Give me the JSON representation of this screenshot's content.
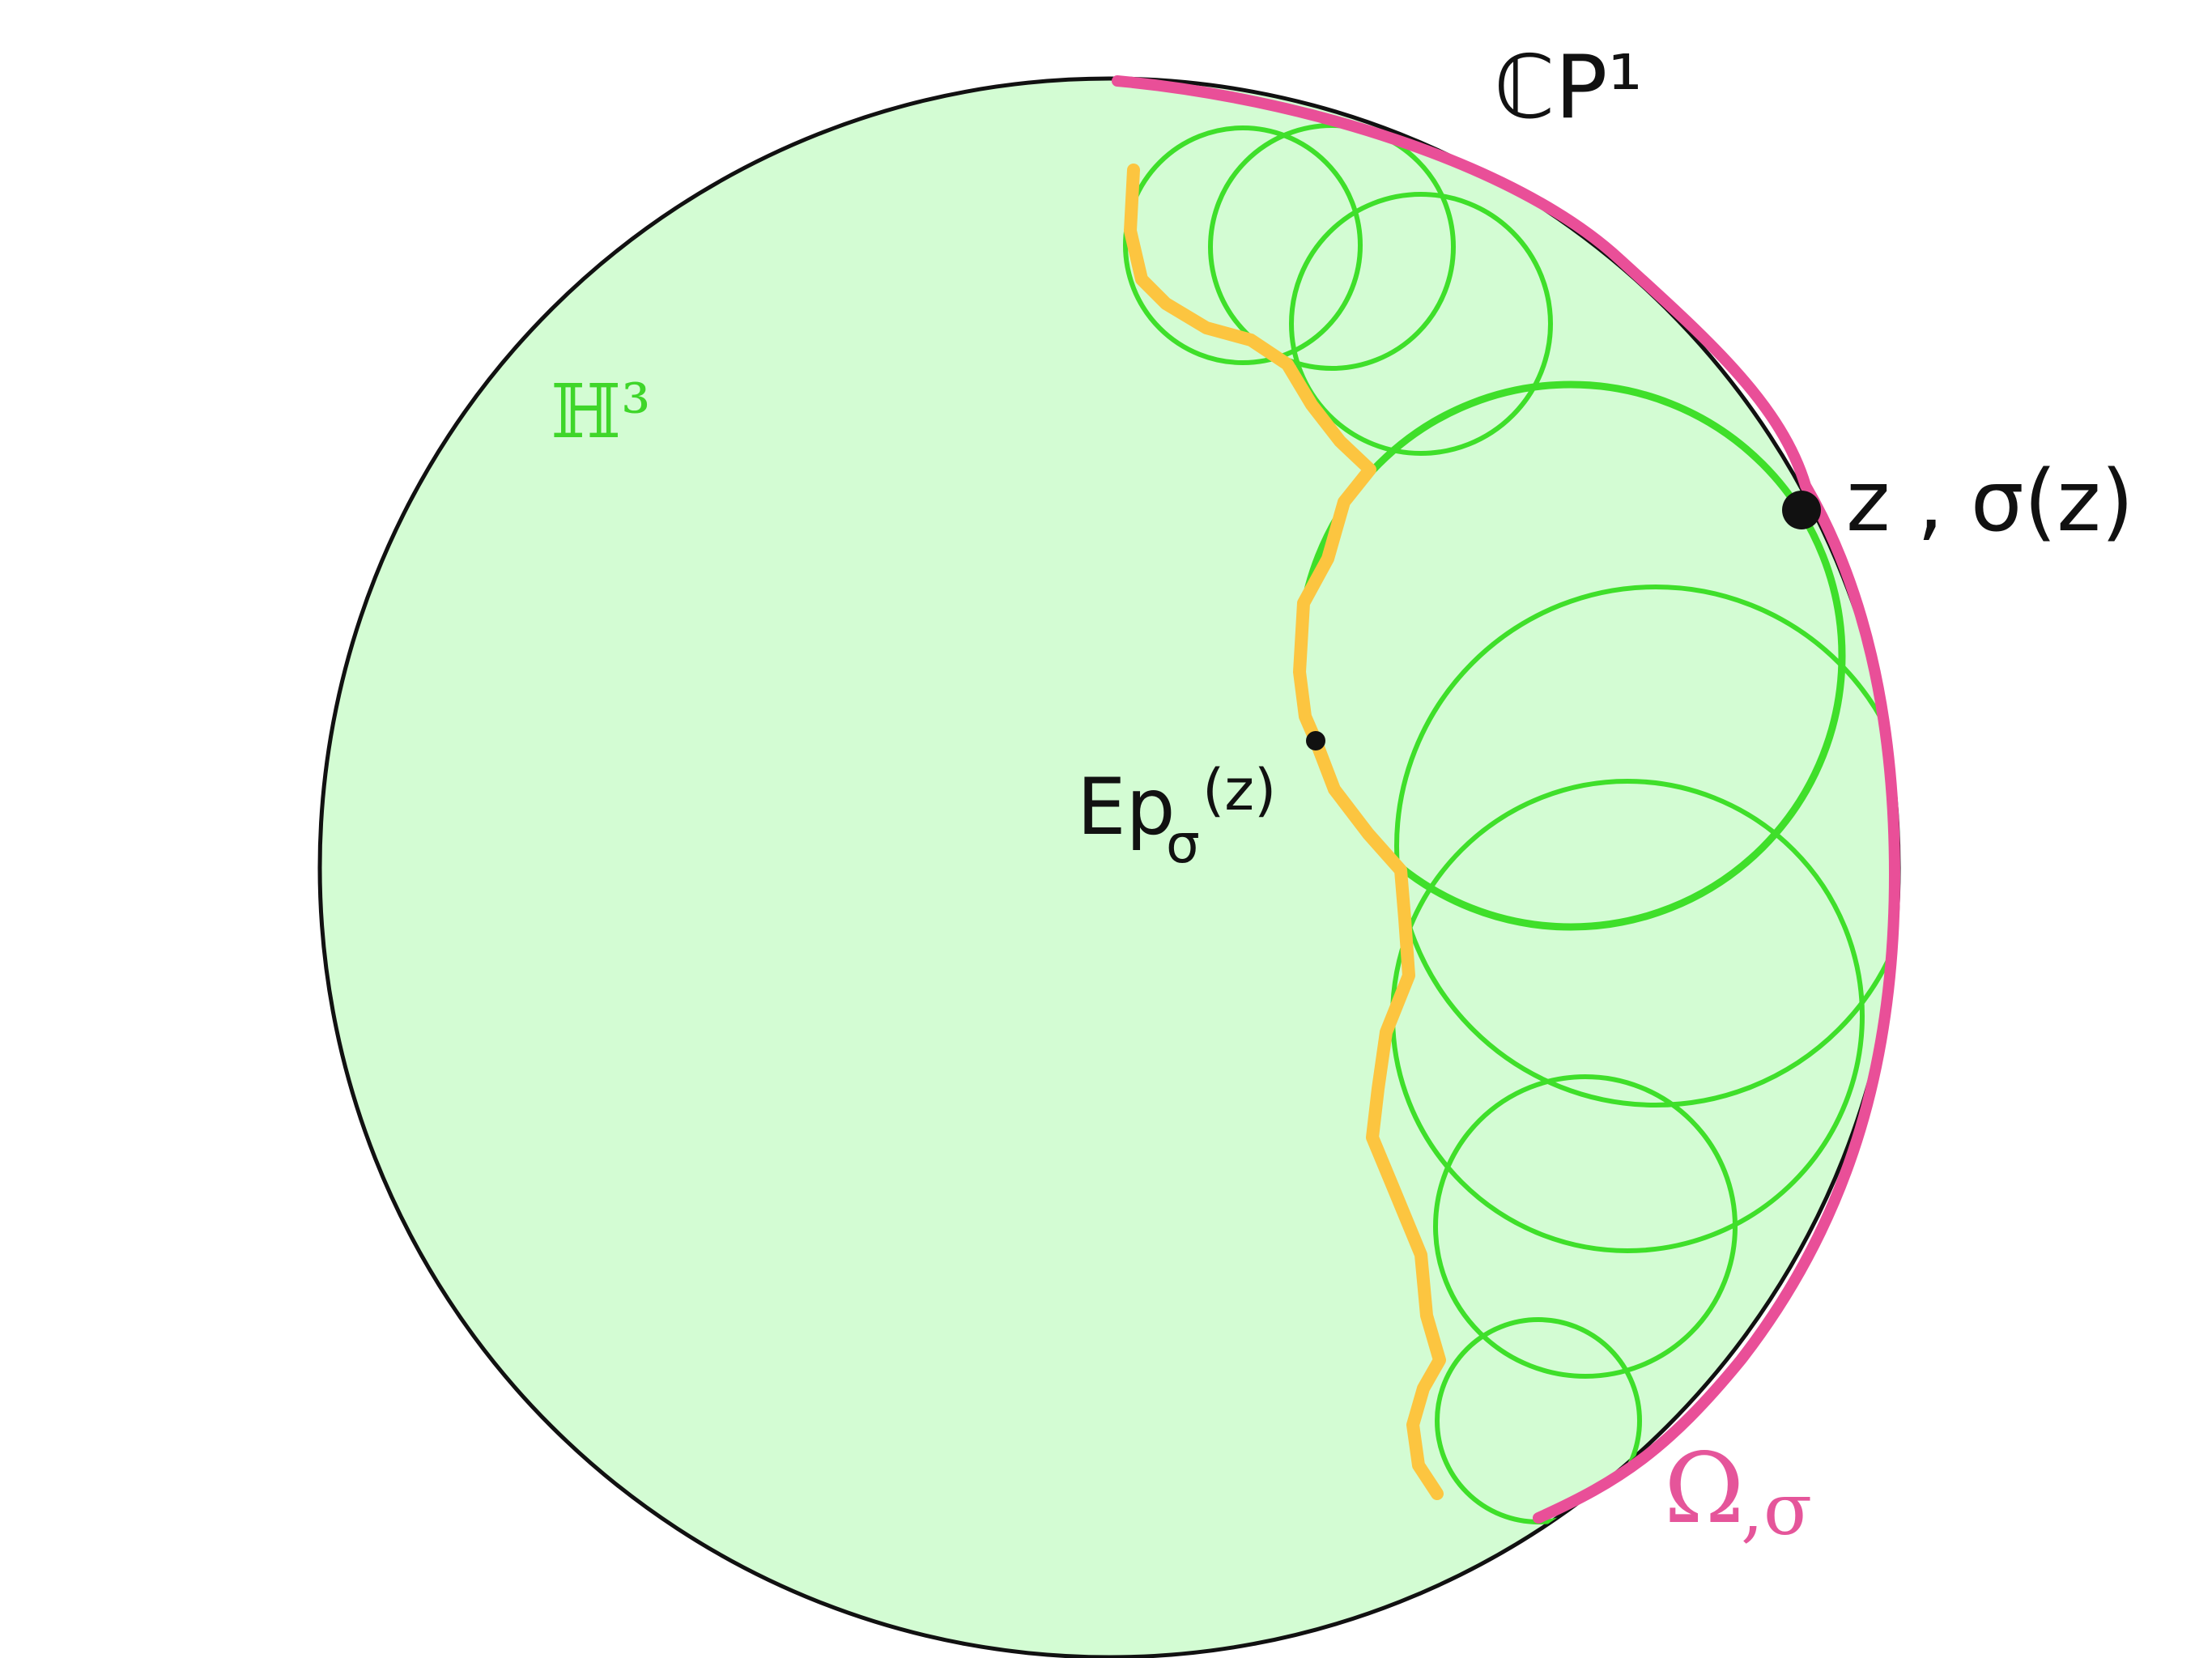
{
  "labels": {
    "boundary": "ℂP¹",
    "space": "ℍ³",
    "point": "z , σ(z)",
    "ep_main": "Ep",
    "ep_sub": "σ",
    "ep_arg": "(z)",
    "domain_main": "Ω",
    "domain_sub": ",σ"
  },
  "colors": {
    "ball_fill": "#d3fcd3",
    "ball_outline": "#111111",
    "circles": "#3fdf2a",
    "pink_arc": "#e94f98",
    "yellow_curve": "#fcc540",
    "point": "#111111"
  }
}
